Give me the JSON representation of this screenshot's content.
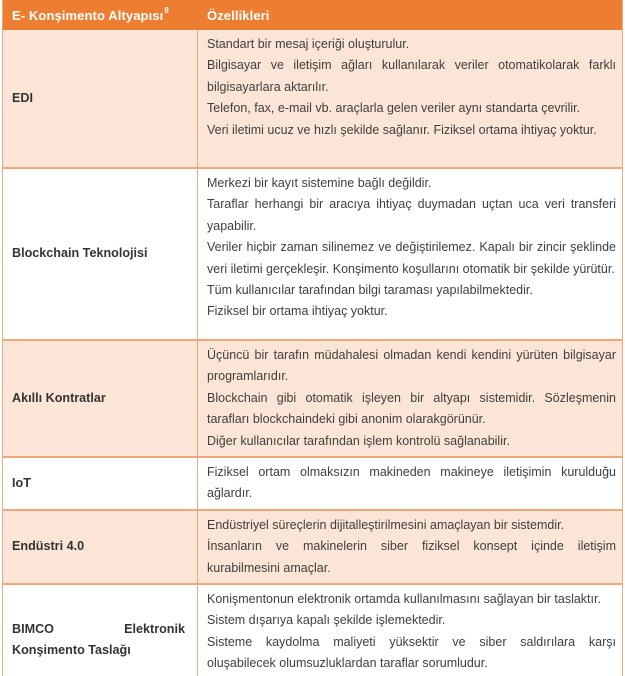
{
  "table": {
    "header": {
      "col1": "E- Konşimento Altyapısı",
      "col1_superscript": "8",
      "col2": "Özellikleri"
    },
    "rows": [
      {
        "label": "EDI",
        "shaded": true,
        "features": [
          "Standart bir mesaj içeriği oluşturulur.",
          "Bilgisayar ve iletişim ağları kullanılarak veriler otomatikolarak farklı bilgisayarlara aktarılır.",
          "Telefon, fax, e-mail vb. araçlarla gelen veriler aynı standarta çevrilir.",
          "Veri iletimi ucuz ve hızlı şekilde sağlanır. Fiziksel ortama ihtiyaç yoktur."
        ]
      },
      {
        "label": "Blockchain Teknolojisi",
        "shaded": false,
        "features": [
          "Merkezi bir kayıt sistemine bağlı değildir.",
          "Taraflar herhangi bir aracıya ihtiyaç duymadan uçtan uca veri transferi yapabilir.",
          "Veriler hiçbir zaman silinemez ve değiştirilemez. Kapalı bir zincir şeklinde veri iletimi gerçekleşir. Konşimento koşullarını otomatik bir şekilde yürütür.",
          "Tüm kullanıcılar tarafından bilgi taraması yapılabilmektedir.",
          "Fiziksel bir ortama ihtiyaç yoktur."
        ]
      },
      {
        "label": "Akıllı Kontratlar",
        "shaded": true,
        "features": [
          "Üçüncü bir tarafın müdahalesi olmadan kendi kendini yürüten bilgisayar programlarıdır.",
          "Blockchain gibi otomatik işleyen bir altyapı sistemidir. Sözleşmenin tarafları blockchaindeki gibi anonim olarakgörünür.",
          "Diğer kullanıcılar tarafından işlem kontrolü sağlanabilir."
        ]
      },
      {
        "label": "IoT",
        "shaded": false,
        "features": [
          "Fiziksel ortam olmaksızın makineden makineye iletişimin kurulduğu ağlardır."
        ]
      },
      {
        "label": "Endüstri 4.0",
        "shaded": true,
        "features": [
          "Endüstriyel süreçlerin dijitalleştirilmesini amaçlayan bir sistemdir.",
          "İnsanların ve makinelerin siber fiziksel konsept içinde iletişim kurabilmesini amaçlar."
        ]
      },
      {
        "label": "BIMCO Elektronik Konşimento Taslağı",
        "shaded": false,
        "features": [
          "Konişmentonun elektronik ortamda kullanılmasını sağlayan bir taslaktır.",
          "Sistem dışarıya kapalı şekilde işlemektedir.",
          "Sisteme kaydolma maliyeti yüksektir ve siber saldırılara karşı oluşabilecek olumsuzluklardan taraflar sorumludur."
        ]
      }
    ],
    "colors": {
      "header_bg": "#ED7D31",
      "header_text": "#FFFFFF",
      "band_bg": "#FBE5D6",
      "plain_bg": "#FFFFFF",
      "inner_border": "#F2A678",
      "outer_border": "#ED7D31",
      "body_text": "#3F3F3F"
    }
  }
}
